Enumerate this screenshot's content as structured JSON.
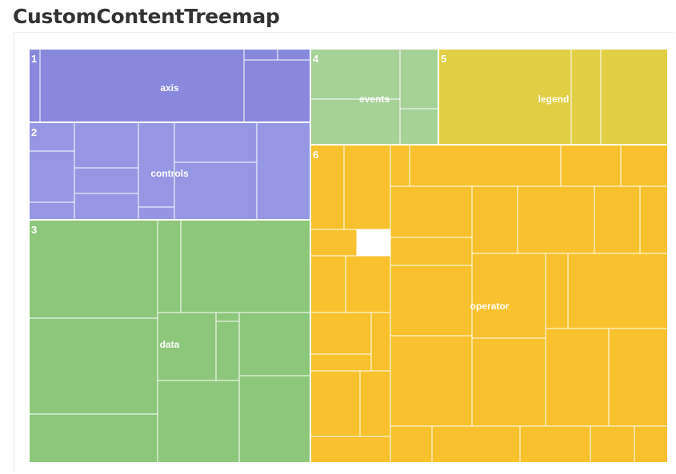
{
  "title": "CustomContentTreemap",
  "chart_data": {
    "type": "treemap",
    "groups": [
      {
        "num": "1",
        "name": "axis",
        "color": "#8889dd"
      },
      {
        "num": "2",
        "name": "controls",
        "color": "#9597e4"
      },
      {
        "num": "3",
        "name": "data",
        "color": "#8dc77b"
      },
      {
        "num": "4",
        "name": "events",
        "color": "#a5d297"
      },
      {
        "num": "5",
        "name": "legend",
        "color": "#e2cf45"
      },
      {
        "num": "6",
        "name": "operator",
        "color": "#f8c12d"
      }
    ]
  }
}
